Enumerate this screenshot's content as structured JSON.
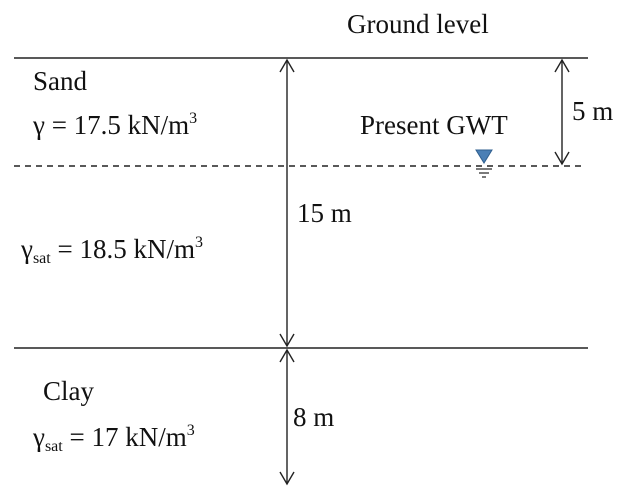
{
  "labels": {
    "ground_level": "Ground level",
    "present_gwt": "Present GWT",
    "depth_5": "5 m",
    "depth_15": "15 m",
    "depth_8": "8 m"
  },
  "layers": {
    "sand": {
      "name": "Sand",
      "gamma_symbol": "γ",
      "gamma_expr": " = 17.5 kN/m",
      "exponent": "3"
    },
    "sand_saturated": {
      "gamma_symbol": "γ",
      "subscript": "sat",
      "gamma_expr": " = 18.5 kN/m",
      "exponent": "3"
    },
    "clay": {
      "name": "Clay",
      "gamma_symbol": "γ",
      "subscript": "sat",
      "gamma_expr": " = 17 kN/m",
      "exponent": "3"
    }
  },
  "colors": {
    "lines": "#222222",
    "water_symbol": "#4a7fb5"
  }
}
